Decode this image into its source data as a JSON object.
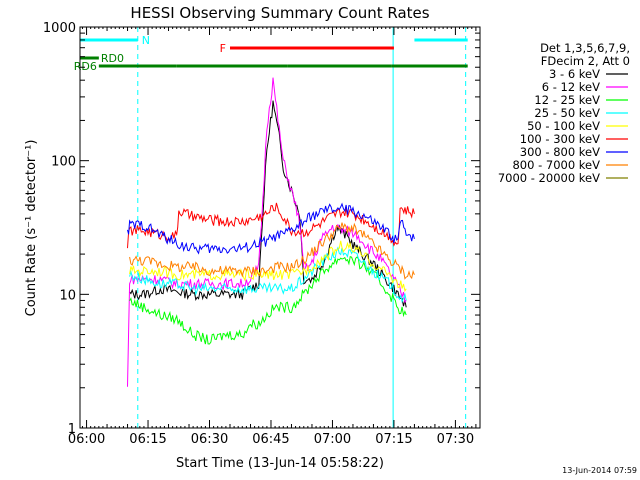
{
  "chart_data": {
    "type": "line",
    "title": "HESSI Observing Summary Count Rates",
    "xlabel": "Start Time (13-Jun-14 05:58:22)",
    "ylabel": "Count Rate (s⁻¹ detector⁻¹)",
    "ylog": true,
    "ylim": [
      1,
      1000
    ],
    "xlim_minutes": [
      -1.6,
      96.0
    ],
    "x_ticks": [
      "06:00",
      "06:15",
      "06:30",
      "06:45",
      "07:00",
      "07:15",
      "07:30"
    ],
    "x_tick_minutes": [
      0,
      15,
      30,
      45,
      60,
      75,
      90
    ],
    "y_ticks": [
      "1",
      "10",
      "100",
      "1000"
    ],
    "y_tick_values": [
      1,
      10,
      100,
      1000
    ],
    "legend_header": [
      "Det 1,3,5,6,7,9,",
      "FDecim 2, Att 0"
    ],
    "grid": false,
    "legend_position": "right",
    "series": [
      {
        "name": "3 - 6 keV",
        "color": "#000000",
        "points": [
          [
            10.5,
            10
          ],
          [
            14,
            10
          ],
          [
            18,
            11
          ],
          [
            22,
            10.5
          ],
          [
            26,
            10
          ],
          [
            30,
            10
          ],
          [
            34,
            10
          ],
          [
            38,
            10
          ],
          [
            40,
            11
          ],
          [
            42,
            12
          ],
          [
            43,
            40
          ],
          [
            44,
            120
          ],
          [
            45.5,
            270
          ],
          [
            47,
            150
          ],
          [
            48,
            90
          ],
          [
            50,
            60
          ],
          [
            52,
            40
          ],
          [
            53,
            13
          ],
          [
            55,
            13
          ],
          [
            58,
            18
          ],
          [
            61,
            32
          ],
          [
            64,
            26
          ],
          [
            67,
            20
          ],
          [
            70,
            17
          ],
          [
            73,
            13
          ],
          [
            75,
            11
          ],
          [
            77,
            9
          ],
          [
            78,
            8
          ]
        ]
      },
      {
        "name": "6 - 12 keV",
        "color": "#ff00ff",
        "points": [
          [
            10,
            2
          ],
          [
            10.5,
            13
          ],
          [
            14,
            13
          ],
          [
            18,
            13
          ],
          [
            22,
            12
          ],
          [
            26,
            12
          ],
          [
            30,
            12
          ],
          [
            34,
            12
          ],
          [
            38,
            12
          ],
          [
            40,
            13
          ],
          [
            42,
            16
          ],
          [
            43,
            50
          ],
          [
            44,
            180
          ],
          [
            45.5,
            400
          ],
          [
            47,
            170
          ],
          [
            48,
            100
          ],
          [
            50,
            60
          ],
          [
            52,
            35
          ],
          [
            53,
            15
          ],
          [
            55,
            17
          ],
          [
            57,
            25
          ],
          [
            60,
            32
          ],
          [
            63,
            30
          ],
          [
            66,
            28
          ],
          [
            69,
            22
          ],
          [
            72,
            18
          ],
          [
            75,
            13
          ],
          [
            77,
            10
          ],
          [
            78,
            9
          ]
        ]
      },
      {
        "name": "12 - 25 keV",
        "color": "#00ff00",
        "points": [
          [
            10.5,
            9
          ],
          [
            14,
            8
          ],
          [
            18,
            7
          ],
          [
            22,
            6.5
          ],
          [
            26,
            5
          ],
          [
            30,
            4.5
          ],
          [
            34,
            5
          ],
          [
            38,
            5
          ],
          [
            40,
            6
          ],
          [
            42,
            6
          ],
          [
            44,
            7
          ],
          [
            46,
            8
          ],
          [
            48,
            8
          ],
          [
            50,
            8
          ],
          [
            53,
            10
          ],
          [
            56,
            13
          ],
          [
            59,
            16
          ],
          [
            62,
            19
          ],
          [
            65,
            18
          ],
          [
            68,
            16
          ],
          [
            71,
            13
          ],
          [
            74,
            10
          ],
          [
            76,
            8
          ],
          [
            78,
            7
          ]
        ]
      },
      {
        "name": "25 - 50 keV",
        "color": "#00ffff",
        "points": [
          [
            10.5,
            14
          ],
          [
            14,
            13
          ],
          [
            18,
            12
          ],
          [
            22,
            12
          ],
          [
            26,
            11
          ],
          [
            30,
            11
          ],
          [
            34,
            11
          ],
          [
            38,
            11
          ],
          [
            40,
            11
          ],
          [
            42,
            11
          ],
          [
            44,
            11
          ],
          [
            46,
            11
          ],
          [
            48,
            11
          ],
          [
            50,
            11
          ],
          [
            53,
            13
          ],
          [
            56,
            16
          ],
          [
            59,
            19
          ],
          [
            62,
            21
          ],
          [
            65,
            20
          ],
          [
            68,
            17
          ],
          [
            71,
            14
          ],
          [
            74,
            12
          ],
          [
            76,
            10
          ],
          [
            78,
            9
          ]
        ]
      },
      {
        "name": "50 - 100 keV",
        "color": "#ffff00",
        "points": [
          [
            10.5,
            15
          ],
          [
            14,
            15
          ],
          [
            18,
            15
          ],
          [
            22,
            14
          ],
          [
            26,
            14
          ],
          [
            30,
            14
          ],
          [
            34,
            14
          ],
          [
            38,
            14
          ],
          [
            40,
            14
          ],
          [
            42,
            14
          ],
          [
            44,
            14
          ],
          [
            46,
            14
          ],
          [
            48,
            14
          ],
          [
            50,
            14
          ],
          [
            53,
            15
          ],
          [
            56,
            17
          ],
          [
            59,
            20
          ],
          [
            62,
            23
          ],
          [
            65,
            22
          ],
          [
            68,
            19
          ],
          [
            71,
            16
          ],
          [
            74,
            14
          ],
          [
            76,
            12
          ],
          [
            78,
            11
          ]
        ]
      },
      {
        "name": "100 - 300 keV",
        "color": "#ff0000",
        "points": [
          [
            10,
            24
          ],
          [
            10.5,
            30
          ],
          [
            14,
            30
          ],
          [
            18,
            28
          ],
          [
            22,
            27
          ],
          [
            22.5,
            42
          ],
          [
            26,
            38
          ],
          [
            30,
            36
          ],
          [
            34,
            35
          ],
          [
            38,
            35
          ],
          [
            40,
            36
          ],
          [
            42,
            38
          ],
          [
            44,
            40
          ],
          [
            46,
            46
          ],
          [
            48,
            38
          ],
          [
            50,
            30
          ],
          [
            53,
            29
          ],
          [
            56,
            32
          ],
          [
            59,
            37
          ],
          [
            62,
            41
          ],
          [
            65,
            40
          ],
          [
            68,
            36
          ],
          [
            71,
            31
          ],
          [
            74,
            27
          ],
          [
            76,
            24
          ],
          [
            76.5,
            44
          ],
          [
            78,
            42
          ],
          [
            80,
            40
          ]
        ]
      },
      {
        "name": "300 - 800 keV",
        "color": "#0000ff",
        "points": [
          [
            10,
            28
          ],
          [
            10.5,
            33
          ],
          [
            14,
            33
          ],
          [
            18,
            28
          ],
          [
            22,
            24
          ],
          [
            26,
            22
          ],
          [
            30,
            22
          ],
          [
            34,
            22
          ],
          [
            38,
            22
          ],
          [
            40,
            23
          ],
          [
            42,
            24
          ],
          [
            44,
            25
          ],
          [
            46,
            27
          ],
          [
            48,
            28
          ],
          [
            50,
            30
          ],
          [
            53,
            35
          ],
          [
            56,
            40
          ],
          [
            59,
            43
          ],
          [
            62,
            44
          ],
          [
            65,
            42
          ],
          [
            68,
            38
          ],
          [
            71,
            33
          ],
          [
            74,
            28
          ],
          [
            76,
            25
          ],
          [
            76.5,
            35
          ],
          [
            78,
            30
          ],
          [
            80,
            26
          ]
        ]
      },
      {
        "name": "800 - 7000 keV",
        "color": "#ff8000",
        "points": [
          [
            10.5,
            18
          ],
          [
            14,
            18
          ],
          [
            18,
            17
          ],
          [
            22,
            16
          ],
          [
            26,
            16
          ],
          [
            30,
            15
          ],
          [
            34,
            15
          ],
          [
            38,
            15
          ],
          [
            40,
            15
          ],
          [
            42,
            15
          ],
          [
            44,
            15
          ],
          [
            46,
            16
          ],
          [
            48,
            16
          ],
          [
            50,
            16
          ],
          [
            53,
            18
          ],
          [
            56,
            22
          ],
          [
            59,
            27
          ],
          [
            62,
            32
          ],
          [
            65,
            31
          ],
          [
            68,
            27
          ],
          [
            71,
            22
          ],
          [
            74,
            18
          ],
          [
            76,
            16
          ],
          [
            78,
            14
          ],
          [
            80,
            14
          ]
        ]
      },
      {
        "name": "7000 - 20000 keV",
        "color": "#808000",
        "points": []
      }
    ],
    "attenuator_bands": [
      {
        "label": "N",
        "color": "#00ffff",
        "row": 0,
        "segments": [
          [
            -1.6,
            12.5
          ],
          [
            80,
            93
          ]
        ]
      },
      {
        "label": "F",
        "color": "#ff0000",
        "row": 1,
        "segments": [
          [
            35,
            75
          ]
        ]
      },
      {
        "label": "RD0",
        "color": "#008000",
        "row": 2,
        "segments": [
          [
            -1.6,
            3
          ]
        ]
      },
      {
        "label": "RD6",
        "color": "#008000",
        "row": 3,
        "segments": [
          [
            3,
            22
          ],
          [
            22,
            49
          ],
          [
            49,
            74.5
          ],
          [
            74.5,
            93
          ]
        ]
      }
    ],
    "saa_lines": [
      [
        -1.6,
        "solid"
      ],
      [
        12.5,
        "dashed"
      ],
      [
        74.8,
        "solid"
      ],
      [
        92.5,
        "dashed"
      ]
    ],
    "timestamp": "13-Jun-2014 07:59"
  }
}
